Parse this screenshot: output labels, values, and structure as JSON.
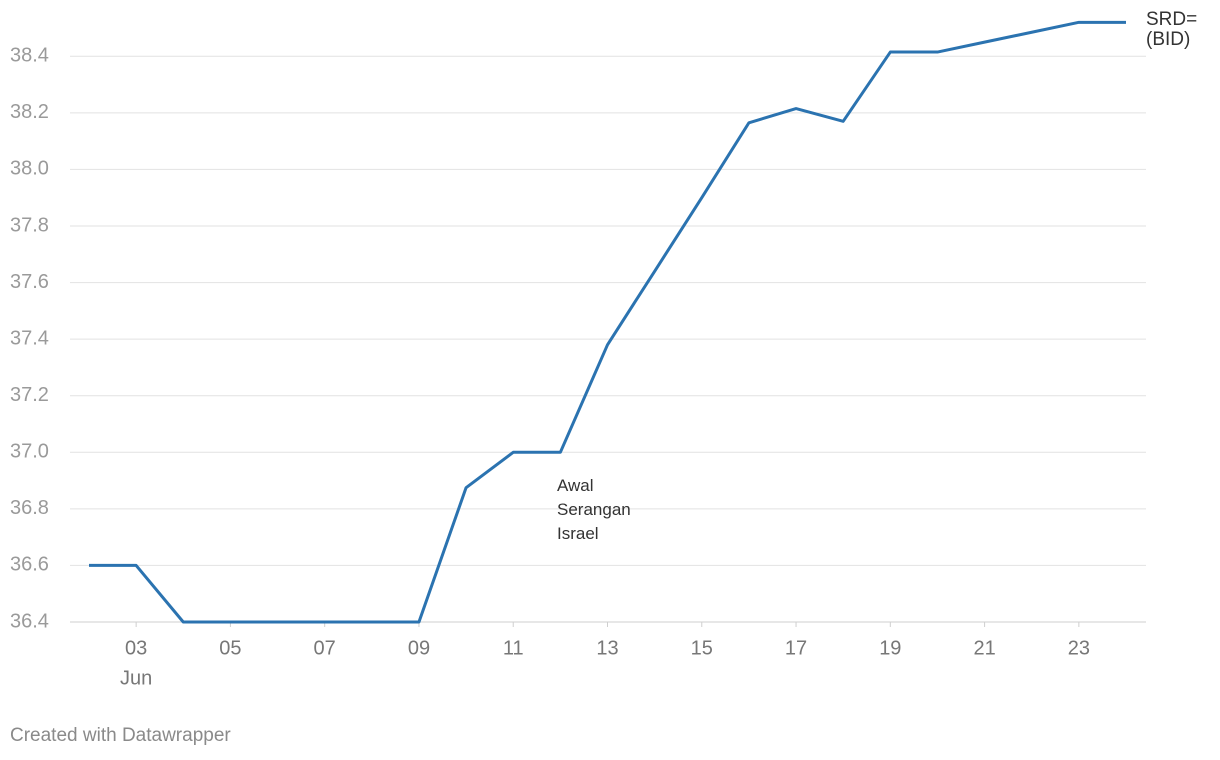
{
  "chart_data": {
    "type": "line",
    "x": [
      2,
      3,
      4,
      5,
      6,
      7,
      8,
      9,
      10,
      11,
      12,
      13,
      14,
      15,
      16,
      17,
      18,
      19,
      20,
      21,
      22,
      23,
      24
    ],
    "series": [
      {
        "name": "SRD= (BID)",
        "color": "#2b73b0",
        "values": [
          36.6,
          36.6,
          36.4,
          36.4,
          36.4,
          36.4,
          36.4,
          36.4,
          36.875,
          37.0,
          37.0,
          37.38,
          37.64,
          37.9,
          38.165,
          38.215,
          38.17,
          38.415,
          38.415,
          38.45,
          38.485,
          38.52,
          38.52
        ]
      }
    ],
    "xlim": [
      2,
      24
    ],
    "xticks": [
      {
        "value": 3,
        "label": "03"
      },
      {
        "value": 5,
        "label": "05"
      },
      {
        "value": 7,
        "label": "07"
      },
      {
        "value": 9,
        "label": "09"
      },
      11,
      13,
      15,
      17,
      19,
      21,
      23
    ],
    "x_period_label": "Jun",
    "ylim": [
      36.4,
      38.5
    ],
    "yticks": [
      36.4,
      36.6,
      36.8,
      {
        "value": 37,
        "label": "37.0"
      },
      37.2,
      37.4,
      37.6,
      37.8,
      {
        "value": 38,
        "label": "38.0"
      },
      38.2,
      38.4
    ],
    "grid": true,
    "annotations": [
      {
        "text": "Awal Serangan Israel"
      }
    ]
  },
  "footer": "Created with Datawrapper"
}
